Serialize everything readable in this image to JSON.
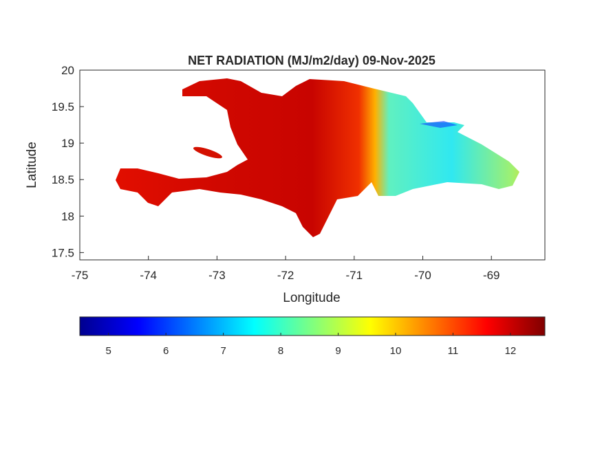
{
  "chart_data": {
    "type": "heatmap",
    "title": "NET RADIATION (MJ/m2/day) 09-Nov-2025",
    "xlabel": "Longitude",
    "ylabel": "Latitude",
    "xlim": [
      -75,
      -68.22
    ],
    "ylim": [
      17.4,
      20
    ],
    "xticks": [
      -75,
      -74,
      -73,
      -72,
      -71,
      -70,
      -69
    ],
    "xtick_labels": [
      "-75",
      "-74",
      "-73",
      "-72",
      "-71",
      "-70",
      "-69"
    ],
    "yticks": [
      17.5,
      18,
      18.5,
      19,
      19.5,
      20
    ],
    "ytick_labels": [
      "17.5",
      "18",
      "18.5",
      "19",
      "19.5",
      "20"
    ],
    "colorbar": {
      "colormap": "jet",
      "range": [
        4.5,
        12.6
      ],
      "ticks": [
        5,
        6,
        7,
        8,
        9,
        10,
        11,
        12
      ],
      "tick_labels": [
        "5",
        "6",
        "7",
        "8",
        "9",
        "10",
        "11",
        "12"
      ],
      "placement": "bottom"
    },
    "region": "Hispaniola",
    "value_summary": {
      "west_haiti_typical": 11.5,
      "east_dominican_republic_typical": 8.0
    }
  }
}
